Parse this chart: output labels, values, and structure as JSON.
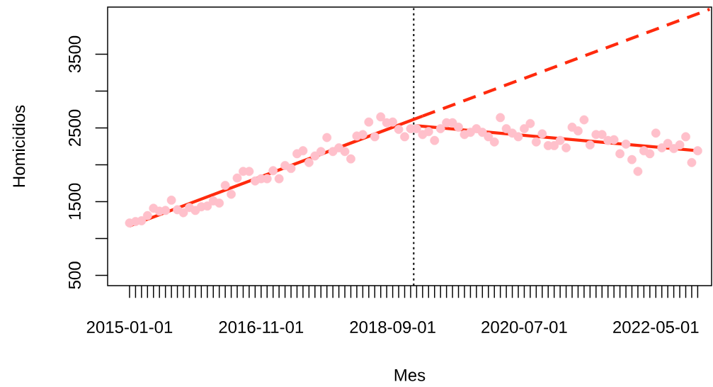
{
  "chart_data": {
    "type": "scatter",
    "xlabel": "Mes",
    "ylabel": "Homicidios",
    "x": [
      "2015-01",
      "2015-02",
      "2015-03",
      "2015-04",
      "2015-05",
      "2015-06",
      "2015-07",
      "2015-08",
      "2015-09",
      "2015-10",
      "2015-11",
      "2015-12",
      "2016-01",
      "2016-02",
      "2016-03",
      "2016-04",
      "2016-05",
      "2016-06",
      "2016-07",
      "2016-08",
      "2016-09",
      "2016-10",
      "2016-11",
      "2016-12",
      "2017-01",
      "2017-02",
      "2017-03",
      "2017-04",
      "2017-05",
      "2017-06",
      "2017-07",
      "2017-08",
      "2017-09",
      "2017-10",
      "2017-11",
      "2017-12",
      "2018-01",
      "2018-02",
      "2018-03",
      "2018-04",
      "2018-05",
      "2018-06",
      "2018-07",
      "2018-08",
      "2018-09",
      "2018-10",
      "2018-11",
      "2018-12",
      "2019-01",
      "2019-02",
      "2019-03",
      "2019-04",
      "2019-05",
      "2019-06",
      "2019-07",
      "2019-08",
      "2019-09",
      "2019-10",
      "2019-11",
      "2019-12",
      "2020-01",
      "2020-02",
      "2020-03",
      "2020-04",
      "2020-05",
      "2020-06",
      "2020-07",
      "2020-08",
      "2020-09",
      "2020-10",
      "2020-11",
      "2020-12",
      "2021-01",
      "2021-02",
      "2021-03",
      "2021-04",
      "2021-05",
      "2021-06",
      "2021-07",
      "2021-08",
      "2021-09",
      "2021-10",
      "2021-11",
      "2021-12",
      "2022-01",
      "2022-02",
      "2022-03",
      "2022-04",
      "2022-05",
      "2022-06",
      "2022-07",
      "2022-08",
      "2022-09",
      "2022-10",
      "2022-11",
      "2022-12"
    ],
    "series": [
      {
        "marker": "circle",
        "color": "#ffc0cb",
        "values": [
          1210,
          1230,
          1240,
          1310,
          1410,
          1370,
          1380,
          1520,
          1390,
          1350,
          1420,
          1380,
          1430,
          1440,
          1510,
          1480,
          1720,
          1600,
          1820,
          1910,
          1910,
          1780,
          1810,
          1810,
          1920,
          1810,
          1990,
          1950,
          2150,
          2190,
          2030,
          2120,
          2180,
          2370,
          2180,
          2230,
          2180,
          2080,
          2390,
          2410,
          2580,
          2380,
          2650,
          2570,
          2580,
          2480,
          2380,
          2490,
          2490,
          2410,
          2450,
          2330,
          2490,
          2570,
          2570,
          2510,
          2410,
          2440,
          2490,
          2440,
          2380,
          2310,
          2640,
          2490,
          2430,
          2380,
          2490,
          2560,
          2310,
          2420,
          2260,
          2260,
          2330,
          2230,
          2510,
          2460,
          2610,
          2270,
          2410,
          2410,
          2330,
          2340,
          2150,
          2280,
          2070,
          1910,
          2190,
          2150,
          2430,
          2230,
          2290,
          2220,
          2270,
          2380,
          2030,
          2190
        ]
      },
      {
        "type": "line",
        "marker": "none",
        "line_style": "solid",
        "color": "#ff2a0d",
        "x": [
          "2015-01",
          "2019-02"
        ],
        "values": [
          1170,
          2660
        ]
      },
      {
        "type": "line",
        "marker": "none",
        "line_style": "dashed",
        "color": "#ff2a0d",
        "x": [
          "2019-02",
          "2023-02"
        ],
        "values": [
          2660,
          4110
        ]
      },
      {
        "type": "line",
        "marker": "none",
        "line_style": "solid",
        "color": "#ff2a0d",
        "x": [
          "2019-01",
          "2022-12"
        ],
        "values": [
          2530,
          2190
        ]
      }
    ],
    "xlim": [
      "2014-09-11",
      "2023-02-10"
    ],
    "ylim": [
      360,
      4140
    ],
    "yticks": [
      500,
      1500,
      2500,
      3500
    ],
    "xticks": [
      {
        "value": "2015-01",
        "label": "2015-01-01"
      },
      {
        "value": "2016-11",
        "label": "2016-11-01"
      },
      {
        "value": "2018-09",
        "label": "2018-09-01"
      },
      {
        "value": "2020-07",
        "label": "2020-07-01"
      },
      {
        "value": "2022-05",
        "label": "2022-05-01"
      }
    ],
    "ref_lines": [
      {
        "axis": "x",
        "value": "2018-12-17",
        "color": "#000000",
        "line_style": "dotted"
      }
    ],
    "grid": false
  }
}
